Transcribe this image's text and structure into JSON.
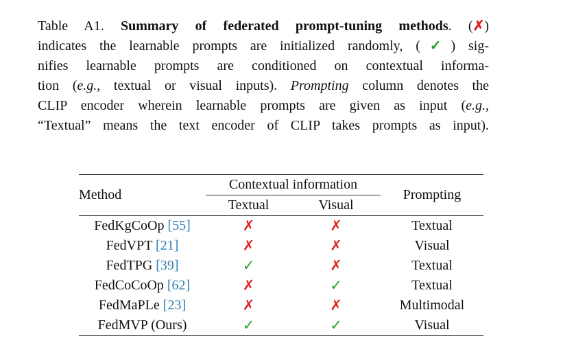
{
  "colors": {
    "cross": "#e02020",
    "check": "#21a121",
    "cite": "#2e7eb3",
    "rule": "#333333",
    "text": "#111111"
  },
  "caption": {
    "lines": [
      [
        {
          "t": "Table A1. ",
          "s": "normal"
        },
        {
          "t": "Summary of federated prompt-tuning methods",
          "s": "bold"
        },
        {
          "t": ". (",
          "s": "normal"
        },
        {
          "t": "✗",
          "s": "cross"
        },
        {
          "t": ")",
          "s": "normal"
        }
      ],
      [
        {
          "t": "indicates the learnable prompts are initialized randomly, (",
          "s": "normal"
        },
        {
          "t": "✓",
          "s": "check"
        },
        {
          "t": ") sig-",
          "s": "normal"
        }
      ],
      [
        {
          "t": "nifies learnable prompts are conditioned on contextual informa-",
          "s": "normal"
        }
      ],
      [
        {
          "t": "tion (",
          "s": "normal"
        },
        {
          "t": "e.g.",
          "s": "italic"
        },
        {
          "t": ", textual or visual inputs). ",
          "s": "normal"
        },
        {
          "t": "Prompting",
          "s": "italic"
        },
        {
          "t": " column denotes the",
          "s": "normal"
        }
      ],
      [
        {
          "t": "CLIP encoder wherein learnable prompts are given as input (",
          "s": "normal"
        },
        {
          "t": "e.g.",
          "s": "italic"
        },
        {
          "t": ",",
          "s": "normal"
        }
      ],
      [
        {
          "t": "“Textual” means the text encoder of CLIP takes prompts as input).",
          "s": "normal"
        }
      ]
    ]
  },
  "table": {
    "headers": {
      "method": "Method",
      "contextual": "Contextual information",
      "textual": "Textual",
      "visual": "Visual",
      "prompting": "Prompting"
    },
    "marks": {
      "cross": "✗",
      "check": "✓"
    },
    "rows": [
      {
        "method": "FedKgCoOp",
        "cite": "[55]",
        "textual": "cross",
        "visual": "cross",
        "prompting": "Textual"
      },
      {
        "method": "FedVPT",
        "cite": "[21]",
        "textual": "cross",
        "visual": "cross",
        "prompting": "Visual"
      },
      {
        "method": "FedTPG",
        "cite": "[39]",
        "textual": "check",
        "visual": "cross",
        "prompting": "Textual"
      },
      {
        "method": "FedCoCoOp",
        "cite": "[62]",
        "textual": "cross",
        "visual": "check",
        "prompting": "Textual"
      },
      {
        "method": "FedMaPLe",
        "cite": "[23]",
        "textual": "cross",
        "visual": "cross",
        "prompting": "Multimodal"
      },
      {
        "method": "FedMVP (Ours)",
        "cite": null,
        "textual": "check",
        "visual": "check",
        "prompting": "Visual"
      }
    ]
  }
}
